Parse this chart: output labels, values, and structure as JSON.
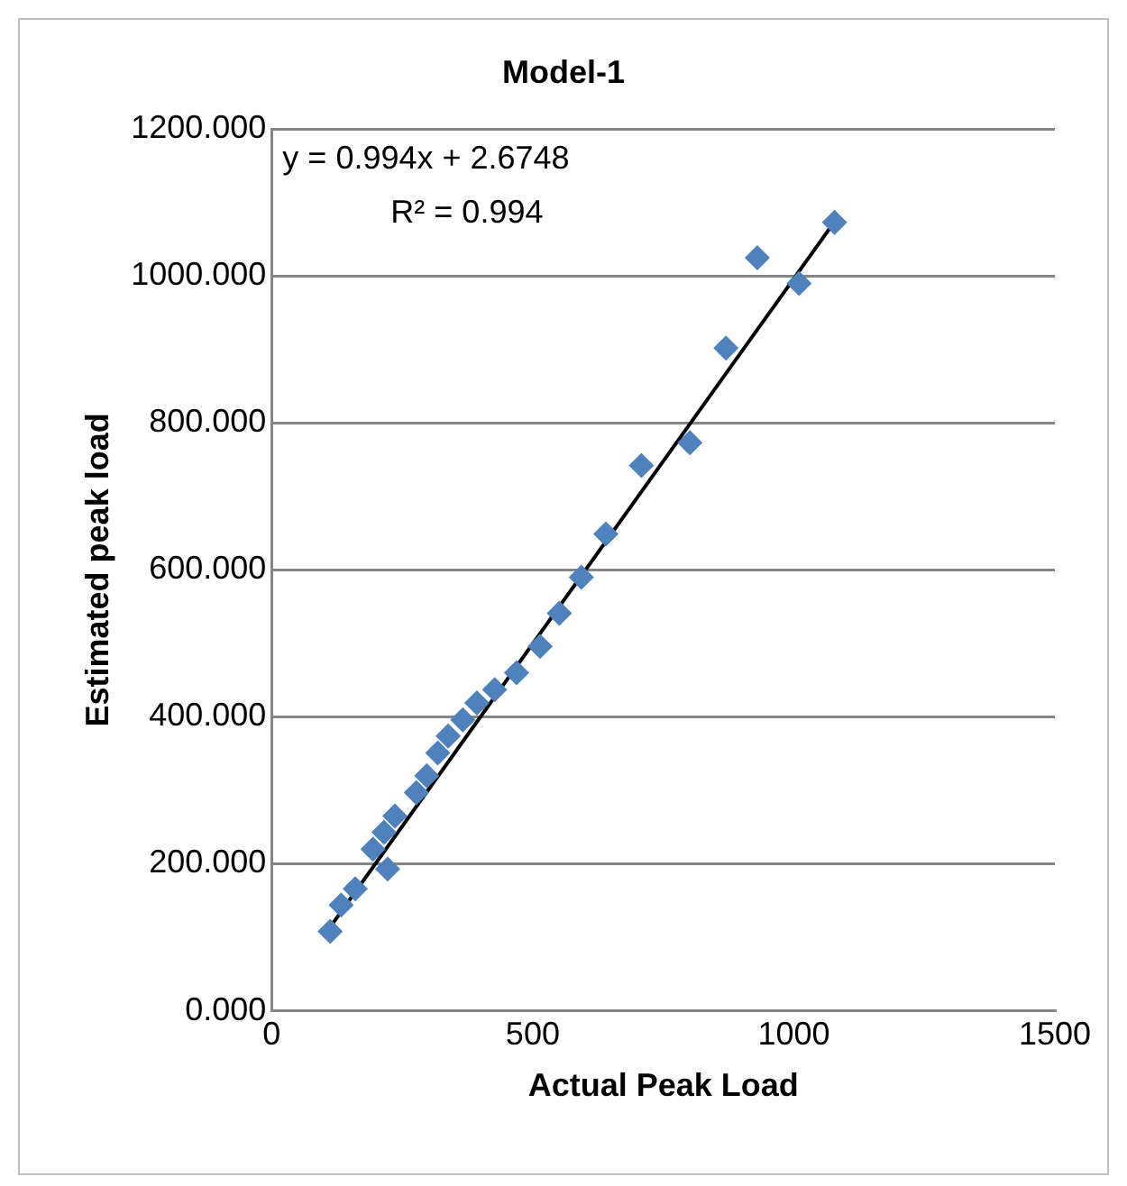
{
  "chart_data": {
    "type": "scatter",
    "title": "Model-1",
    "xlabel": "Actual Peak Load",
    "ylabel": "Estimated peak load",
    "annotations": [
      "y = 0.994x + 2.6748",
      "R² = 0.994"
    ],
    "x": [
      112,
      133,
      160,
      194,
      222,
      215,
      236,
      277,
      297,
      318,
      338,
      366,
      393,
      427,
      469,
      514,
      551,
      593,
      640,
      708,
      801,
      870,
      930,
      1010,
      1078
    ],
    "series": [
      {
        "color": "#4f81bd",
        "marker": "diamond",
        "values": [
          108,
          144,
          166,
          220,
          193,
          243,
          265,
          297,
          320,
          351,
          374,
          396,
          419,
          437,
          460,
          496,
          541,
          590,
          649,
          742,
          773,
          902,
          1025,
          990,
          1073
        ]
      },
      {
        "type": "line",
        "color": "#000000",
        "marker": "none",
        "x": [
          112,
          1078
        ],
        "values": [
          114,
          1074
        ]
      }
    ],
    "xlim": [
      0,
      1500
    ],
    "xticks": [
      0,
      500,
      1000,
      1500
    ],
    "ylim": [
      0,
      1200
    ],
    "yticks": [
      {
        "value": 0,
        "label": "0.000"
      },
      {
        "value": 200,
        "label": "200.000"
      },
      {
        "value": 400,
        "label": "400.000"
      },
      {
        "value": 600,
        "label": "600.000"
      },
      {
        "value": 800,
        "label": "800.000"
      },
      {
        "value": 1000,
        "label": "1000.000"
      },
      {
        "value": 1200,
        "label": "1200.000"
      }
    ],
    "grid": "y",
    "legend": false
  }
}
